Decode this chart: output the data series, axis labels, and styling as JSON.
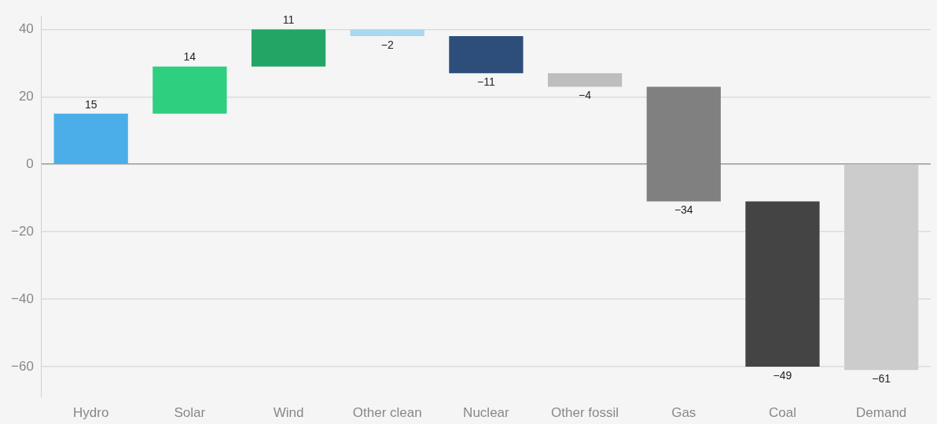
{
  "chart_data": {
    "type": "bar",
    "categories": [
      "Hydro",
      "Solar",
      "Wind",
      "Other clean",
      "Nuclear",
      "Other fossil",
      "Gas",
      "Coal",
      "Demand"
    ],
    "values": [
      15,
      14,
      11,
      -2,
      -11,
      -4,
      -34,
      -49,
      -61
    ],
    "base": [
      0,
      15,
      29,
      40,
      38,
      27,
      23,
      -11,
      0
    ],
    "colors": [
      "#4baee8",
      "#2ecf7e",
      "#22a565",
      "#a8d8f2",
      "#2d4e7a",
      "#bdbdbd",
      "#808080",
      "#444444",
      "#cccccc"
    ],
    "ylim": [
      -69,
      44
    ],
    "yticks": [
      -60,
      -40,
      -20,
      0,
      20,
      40
    ],
    "grid": "y",
    "data_labels": true
  }
}
